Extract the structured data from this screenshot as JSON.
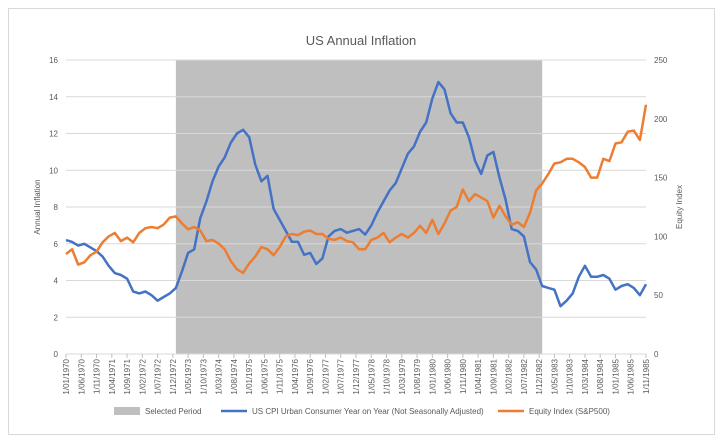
{
  "chart_data": {
    "type": "line",
    "title": "US Annual Inflation",
    "ylabel": "Annual Inflation",
    "y2label": "Equity Index",
    "ylim": [
      0,
      16
    ],
    "y2lim": [
      0,
      250
    ],
    "yticks": [
      "0",
      "2",
      "4",
      "6",
      "8",
      "10",
      "12",
      "14",
      "16"
    ],
    "y2ticks": [
      "0",
      "50",
      "100",
      "150",
      "200",
      "250"
    ],
    "grid": "horizontal",
    "legend_position": "bottom",
    "x_start": "1970-01",
    "x_end": "1985-11",
    "x_ticks": [
      "1/01/1970",
      "1/06/1970",
      "1/11/1970",
      "1/04/1971",
      "1/09/1971",
      "1/02/1972",
      "1/07/1972",
      "1/12/1972",
      "1/05/1973",
      "1/10/1973",
      "1/03/1974",
      "1/08/1974",
      "1/01/1975",
      "1/06/1975",
      "1/11/1975",
      "1/04/1976",
      "1/09/1976",
      "1/02/1977",
      "1/07/1977",
      "1/12/1977",
      "1/05/1978",
      "1/10/1978",
      "1/03/1979",
      "1/08/1979",
      "1/01/1980",
      "1/06/1980",
      "1/11/1980",
      "1/04/1981",
      "1/09/1981",
      "1/02/1982",
      "1/07/1982",
      "1/12/1982",
      "1/05/1983",
      "1/10/1983",
      "1/03/1984",
      "1/08/1984",
      "1/01/1985",
      "1/06/1985",
      "1/11/1985"
    ],
    "selected_period": {
      "name": "Selected Period",
      "start": "1973-01",
      "end": "1983-01",
      "color": "#bfbfbf"
    },
    "series": [
      {
        "name": "US CPI Urban Consumer Year on Year (Not Seasonally Adjusted)",
        "axis": "left",
        "color": "#4472c4",
        "points": [
          [
            "1970-01",
            6.2
          ],
          [
            "1970-03",
            6.1
          ],
          [
            "1970-05",
            5.9
          ],
          [
            "1970-07",
            6.0
          ],
          [
            "1970-09",
            5.8
          ],
          [
            "1970-11",
            5.6
          ],
          [
            "1971-01",
            5.3
          ],
          [
            "1971-03",
            4.8
          ],
          [
            "1971-05",
            4.4
          ],
          [
            "1971-07",
            4.3
          ],
          [
            "1971-09",
            4.1
          ],
          [
            "1971-11",
            3.4
          ],
          [
            "1972-01",
            3.3
          ],
          [
            "1972-03",
            3.4
          ],
          [
            "1972-05",
            3.2
          ],
          [
            "1972-07",
            2.9
          ],
          [
            "1972-09",
            3.1
          ],
          [
            "1972-11",
            3.3
          ],
          [
            "1973-01",
            3.6
          ],
          [
            "1973-03",
            4.5
          ],
          [
            "1973-05",
            5.5
          ],
          [
            "1973-07",
            5.7
          ],
          [
            "1973-09",
            7.4
          ],
          [
            "1973-11",
            8.3
          ],
          [
            "1974-01",
            9.4
          ],
          [
            "1974-03",
            10.2
          ],
          [
            "1974-05",
            10.7
          ],
          [
            "1974-07",
            11.5
          ],
          [
            "1974-09",
            12.0
          ],
          [
            "1974-11",
            12.2
          ],
          [
            "1975-01",
            11.8
          ],
          [
            "1975-03",
            10.3
          ],
          [
            "1975-05",
            9.4
          ],
          [
            "1975-07",
            9.7
          ],
          [
            "1975-09",
            7.9
          ],
          [
            "1975-11",
            7.3
          ],
          [
            "1976-01",
            6.7
          ],
          [
            "1976-03",
            6.1
          ],
          [
            "1976-05",
            6.1
          ],
          [
            "1976-07",
            5.4
          ],
          [
            "1976-09",
            5.5
          ],
          [
            "1976-11",
            4.9
          ],
          [
            "1977-01",
            5.2
          ],
          [
            "1977-03",
            6.4
          ],
          [
            "1977-05",
            6.7
          ],
          [
            "1977-07",
            6.8
          ],
          [
            "1977-09",
            6.6
          ],
          [
            "1977-11",
            6.7
          ],
          [
            "1978-01",
            6.8
          ],
          [
            "1978-03",
            6.5
          ],
          [
            "1978-05",
            7.0
          ],
          [
            "1978-07",
            7.7
          ],
          [
            "1978-09",
            8.3
          ],
          [
            "1978-11",
            8.9
          ],
          [
            "1979-01",
            9.3
          ],
          [
            "1979-03",
            10.1
          ],
          [
            "1979-05",
            10.9
          ],
          [
            "1979-07",
            11.3
          ],
          [
            "1979-09",
            12.1
          ],
          [
            "1979-11",
            12.6
          ],
          [
            "1980-01",
            13.9
          ],
          [
            "1980-03",
            14.8
          ],
          [
            "1980-05",
            14.4
          ],
          [
            "1980-07",
            13.1
          ],
          [
            "1980-09",
            12.6
          ],
          [
            "1980-11",
            12.6
          ],
          [
            "1981-01",
            11.8
          ],
          [
            "1981-03",
            10.5
          ],
          [
            "1981-05",
            9.8
          ],
          [
            "1981-07",
            10.8
          ],
          [
            "1981-09",
            11.0
          ],
          [
            "1981-11",
            9.6
          ],
          [
            "1982-01",
            8.4
          ],
          [
            "1982-03",
            6.8
          ],
          [
            "1982-05",
            6.7
          ],
          [
            "1982-07",
            6.4
          ],
          [
            "1982-09",
            5.0
          ],
          [
            "1982-11",
            4.6
          ],
          [
            "1983-01",
            3.7
          ],
          [
            "1983-03",
            3.6
          ],
          [
            "1983-05",
            3.5
          ],
          [
            "1983-07",
            2.6
          ],
          [
            "1983-09",
            2.9
          ],
          [
            "1983-11",
            3.3
          ],
          [
            "1984-01",
            4.2
          ],
          [
            "1984-03",
            4.8
          ],
          [
            "1984-05",
            4.2
          ],
          [
            "1984-07",
            4.2
          ],
          [
            "1984-09",
            4.3
          ],
          [
            "1984-11",
            4.1
          ],
          [
            "1985-01",
            3.5
          ],
          [
            "1985-03",
            3.7
          ],
          [
            "1985-05",
            3.8
          ],
          [
            "1985-07",
            3.6
          ],
          [
            "1985-09",
            3.2
          ],
          [
            "1985-11",
            3.8
          ]
        ]
      },
      {
        "name": "Equity Index (S&P500)",
        "axis": "right",
        "color": "#ed7d31",
        "points": [
          [
            "1970-01",
            85
          ],
          [
            "1970-03",
            89
          ],
          [
            "1970-05",
            76
          ],
          [
            "1970-07",
            78
          ],
          [
            "1970-09",
            84
          ],
          [
            "1970-11",
            87
          ],
          [
            "1971-01",
            95
          ],
          [
            "1971-03",
            100
          ],
          [
            "1971-05",
            103
          ],
          [
            "1971-07",
            96
          ],
          [
            "1971-09",
            99
          ],
          [
            "1971-11",
            95
          ],
          [
            "1972-01",
            103
          ],
          [
            "1972-03",
            107
          ],
          [
            "1972-05",
            108
          ],
          [
            "1972-07",
            107
          ],
          [
            "1972-09",
            110
          ],
          [
            "1972-11",
            116
          ],
          [
            "1973-01",
            117
          ],
          [
            "1973-03",
            111
          ],
          [
            "1973-05",
            106
          ],
          [
            "1973-07",
            108
          ],
          [
            "1973-09",
            105
          ],
          [
            "1973-11",
            96
          ],
          [
            "1974-01",
            97
          ],
          [
            "1974-03",
            94
          ],
          [
            "1974-05",
            89
          ],
          [
            "1974-07",
            79
          ],
          [
            "1974-09",
            72
          ],
          [
            "1974-11",
            69
          ],
          [
            "1975-01",
            77
          ],
          [
            "1975-03",
            83
          ],
          [
            "1975-05",
            91
          ],
          [
            "1975-07",
            89
          ],
          [
            "1975-09",
            84
          ],
          [
            "1975-11",
            91
          ],
          [
            "1976-01",
            100
          ],
          [
            "1976-03",
            102
          ],
          [
            "1976-05",
            101
          ],
          [
            "1976-07",
            104
          ],
          [
            "1976-09",
            105
          ],
          [
            "1976-11",
            102
          ],
          [
            "1977-01",
            102
          ],
          [
            "1977-03",
            98
          ],
          [
            "1977-05",
            97
          ],
          [
            "1977-07",
            99
          ],
          [
            "1977-09",
            96
          ],
          [
            "1977-11",
            95
          ],
          [
            "1978-01",
            89
          ],
          [
            "1978-03",
            89
          ],
          [
            "1978-05",
            97
          ],
          [
            "1978-07",
            99
          ],
          [
            "1978-09",
            103
          ],
          [
            "1978-11",
            95
          ],
          [
            "1979-01",
            99
          ],
          [
            "1979-03",
            102
          ],
          [
            "1979-05",
            99
          ],
          [
            "1979-07",
            103
          ],
          [
            "1979-09",
            109
          ],
          [
            "1979-11",
            103
          ],
          [
            "1980-01",
            114
          ],
          [
            "1980-03",
            102
          ],
          [
            "1980-05",
            111
          ],
          [
            "1980-07",
            122
          ],
          [
            "1980-09",
            125
          ],
          [
            "1980-11",
            140
          ],
          [
            "1981-01",
            130
          ],
          [
            "1981-03",
            136
          ],
          [
            "1981-05",
            133
          ],
          [
            "1981-07",
            130
          ],
          [
            "1981-09",
            116
          ],
          [
            "1981-11",
            126
          ],
          [
            "1982-01",
            117
          ],
          [
            "1982-03",
            110
          ],
          [
            "1982-05",
            112
          ],
          [
            "1982-07",
            108
          ],
          [
            "1982-09",
            120
          ],
          [
            "1982-11",
            139
          ],
          [
            "1983-01",
            145
          ],
          [
            "1983-03",
            153
          ],
          [
            "1983-05",
            162
          ],
          [
            "1983-07",
            163
          ],
          [
            "1983-09",
            166
          ],
          [
            "1983-11",
            166
          ],
          [
            "1984-01",
            163
          ],
          [
            "1984-03",
            159
          ],
          [
            "1984-05",
            150
          ],
          [
            "1984-07",
            150
          ],
          [
            "1984-09",
            166
          ],
          [
            "1984-11",
            164
          ],
          [
            "1985-01",
            179
          ],
          [
            "1985-03",
            180
          ],
          [
            "1985-05",
            189
          ],
          [
            "1985-07",
            190
          ],
          [
            "1985-09",
            182
          ],
          [
            "1985-11",
            212
          ]
        ]
      }
    ]
  }
}
